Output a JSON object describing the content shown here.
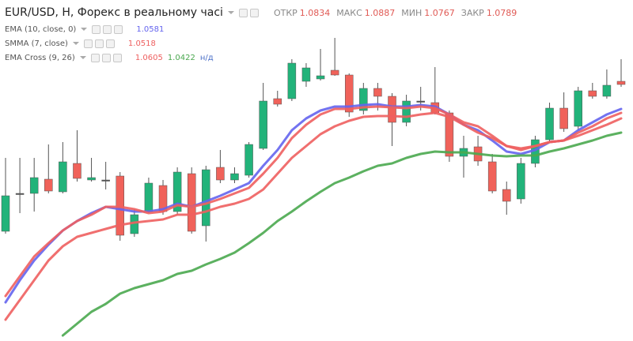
{
  "chart_data": {
    "type": "candlestick",
    "title": "EUR/USD, H, Форекс в реальному часі",
    "fields": [
      {
        "label": "ОТКР",
        "value": 1.0834
      },
      {
        "label": "МАКС",
        "value": 1.0887
      },
      {
        "label": "МИН",
        "value": 1.0767
      },
      {
        "label": "ЗАКР",
        "value": 1.0789
      }
    ],
    "field_color": "#e05a55",
    "ylim": [
      1.0,
      1.108
    ],
    "up_color": "#22b37a",
    "down_color": "#f0625a",
    "wick_color": "#555555",
    "candles": {
      "open": [
        1.03475,
        1.04675,
        1.04675,
        1.05125,
        1.04725,
        1.05625,
        1.051,
        1.051,
        1.05225,
        1.034,
        1.041,
        1.04925,
        1.041,
        1.053,
        1.0365,
        1.055,
        1.051,
        1.0525,
        1.061,
        1.07675,
        1.07675,
        1.08225,
        1.083,
        1.08575,
        1.08425,
        1.073,
        1.08,
        1.0775,
        1.06925,
        1.076,
        1.0755,
        1.07225,
        1.0585,
        1.0615,
        1.05675,
        1.048,
        1.045,
        1.05625,
        1.06375,
        1.07375,
        1.068,
        1.07925,
        1.0775,
        1.08225
      ],
      "high": [
        1.058,
        1.058,
        1.058,
        1.06225,
        1.063,
        1.06675,
        1.058,
        1.05675,
        1.0535,
        1.04175,
        1.05175,
        1.051,
        1.055,
        1.055,
        1.0555,
        1.0605,
        1.055,
        1.063,
        1.08175,
        1.07925,
        1.08925,
        1.088,
        1.0925,
        1.096,
        1.08475,
        1.08175,
        1.08175,
        1.0785,
        1.078,
        1.0805,
        1.08675,
        1.073,
        1.065,
        1.065,
        1.05925,
        1.0505,
        1.058,
        1.065,
        1.0755,
        1.07875,
        1.0805,
        1.08175,
        1.086,
        1.08925
      ],
      "low": [
        1.034,
        1.0405,
        1.041,
        1.04675,
        1.04675,
        1.0505,
        1.0505,
        1.048,
        1.03175,
        1.033,
        1.0405,
        1.04,
        1.04,
        1.034,
        1.0315,
        1.05,
        1.05,
        1.05175,
        1.0605,
        1.07425,
        1.076,
        1.0805,
        1.0825,
        1.084,
        1.071,
        1.07175,
        1.073,
        1.06175,
        1.068,
        1.073,
        1.07175,
        1.05675,
        1.05175,
        1.0555,
        1.04675,
        1.04,
        1.0435,
        1.055,
        1.063,
        1.06625,
        1.06675,
        1.07675,
        1.07675,
        1.0805
      ],
      "close": [
        1.046,
        1.04675,
        1.05175,
        1.0475,
        1.05675,
        1.0515,
        1.05175,
        1.051,
        1.0335,
        1.04,
        1.05,
        1.041,
        1.0535,
        1.03475,
        1.05425,
        1.051,
        1.053,
        1.06225,
        1.076,
        1.075,
        1.088,
        1.0865,
        1.084,
        1.08425,
        1.0725,
        1.08,
        1.0775,
        1.06925,
        1.076,
        1.076,
        1.07225,
        1.0585,
        1.061,
        1.057,
        1.0475,
        1.04425,
        1.05625,
        1.06375,
        1.07375,
        1.06725,
        1.07925,
        1.0775,
        1.081,
        1.08125
      ]
    },
    "indicators": [
      {
        "name": "EMA (10, close, 0)",
        "series": [
          {
            "color": "#6464ee",
            "reading": 1.0581,
            "values": [
              1.01225,
              1.01925,
              1.0255,
              1.0305,
              1.035,
              1.038,
              1.0405,
              1.0425,
              1.04175,
              1.041,
              1.041,
              1.04175,
              1.0435,
              1.0425,
              1.04425,
              1.046,
              1.048,
              1.05,
              1.0555,
              1.0605,
              1.06675,
              1.0705,
              1.073,
              1.07425,
              1.07425,
              1.07475,
              1.075,
              1.07425,
              1.07425,
              1.07475,
              1.07425,
              1.07175,
              1.0685,
              1.06675,
              1.0635,
              1.06,
              1.05925,
              1.0605,
              1.063,
              1.0635,
              1.06675,
              1.06925,
              1.07175,
              1.0735
            ]
          }
        ]
      },
      {
        "name": "SMMA (7, close)",
        "series": [
          {
            "color": "#ee5f5f",
            "reading": 1.0518,
            "values": [
              1.00675,
              1.013,
              1.01925,
              1.0255,
              1.03,
              1.033,
              1.03425,
              1.0355,
              1.03675,
              1.0375,
              1.038,
              1.0385,
              1.04,
              1.04,
              1.041,
              1.0425,
              1.0435,
              1.045,
              1.048,
              1.053,
              1.058,
              1.06175,
              1.0655,
              1.068,
              1.06975,
              1.071,
              1.07125,
              1.07125,
              1.071,
              1.07175,
              1.07225,
              1.071,
              1.0685,
              1.066,
              1.06425,
              1.06175,
              1.0605,
              1.06175,
              1.063,
              1.0635,
              1.065,
              1.06675,
              1.0685,
              1.0705
            ]
          }
        ]
      },
      {
        "name": "EMA Cross (9, 26)",
        "note": "н/д",
        "series": [
          {
            "color": "#ee5f5f",
            "reading": 1.0605,
            "values": [
              1.01425,
              1.0205,
              1.02675,
              1.031,
              1.035,
              1.038,
              1.04,
              1.0425,
              1.0425,
              1.04175,
              1.0405,
              1.041,
              1.043,
              1.0425,
              1.0435,
              1.045,
              1.04675,
              1.0485,
              1.053,
              1.058,
              1.06425,
              1.0685,
              1.07175,
              1.0735,
              1.0735,
              1.074,
              1.07425,
              1.074,
              1.07375,
              1.07425,
              1.07375,
              1.07175,
              1.06925,
              1.068,
              1.065,
              1.06175,
              1.061,
              1.06175,
              1.063,
              1.0635,
              1.066,
              1.068,
              1.0705,
              1.07225
            ]
          },
          {
            "color": "#4aa84f",
            "reading": 1.0422,
            "values": [
              null,
              null,
              null,
              null,
              1.00175,
              1.0055,
              1.00925,
              1.01175,
              1.015,
              1.01675,
              1.018,
              1.01925,
              1.02125,
              1.02225,
              1.02425,
              1.026,
              1.028,
              1.031,
              1.03425,
              1.038,
              1.041,
              1.04425,
              1.04725,
              1.05,
              1.05175,
              1.05375,
              1.0555,
              1.05625,
              1.058,
              1.05925,
              1.06,
              1.05975,
              1.05975,
              1.05925,
              1.05875,
              1.0585,
              1.05875,
              1.05875,
              1.06,
              1.061,
              1.06225,
              1.0635,
              1.065,
              1.066
            ]
          }
        ]
      }
    ]
  }
}
